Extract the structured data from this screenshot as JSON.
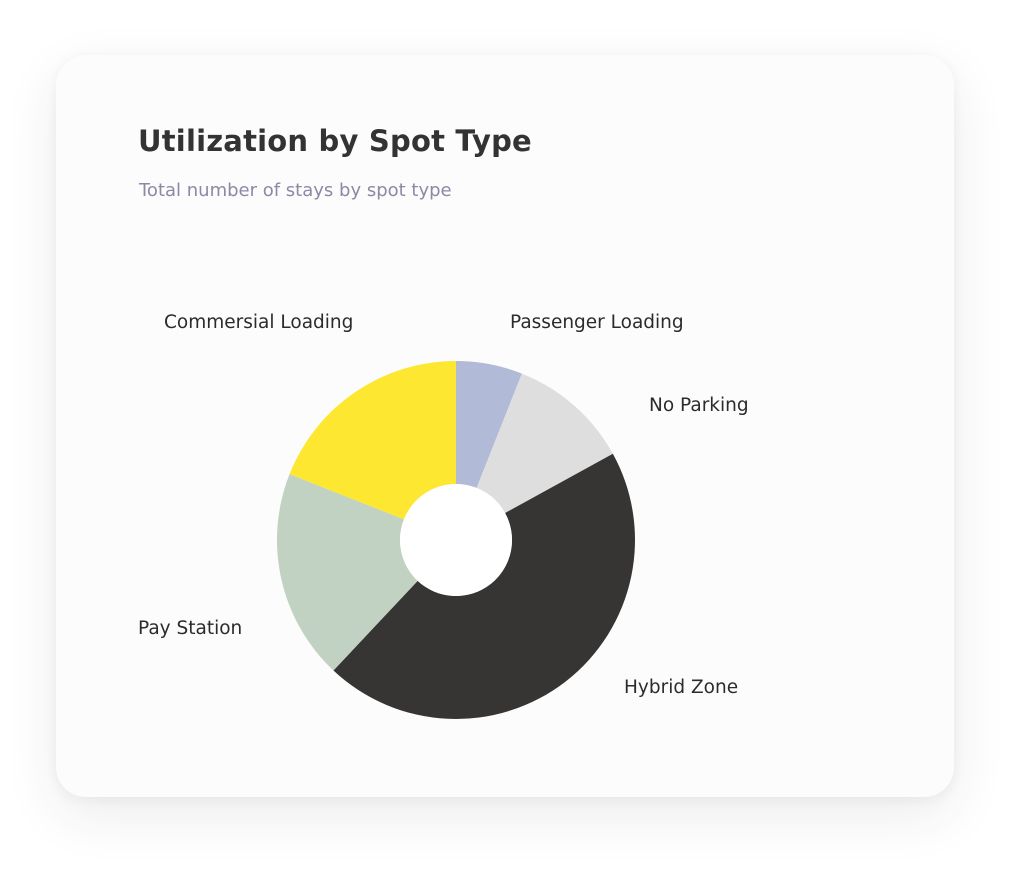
{
  "card": {
    "title": "Utilization by Spot Type",
    "subtitle": "Total number of stays by spot type"
  },
  "chart_data": {
    "type": "pie",
    "donut": true,
    "title": "Utilization by Spot Type",
    "subtitle": "Total number of stays by spot type",
    "legend": "none (direct slice labels)",
    "slices": [
      {
        "label": "Passenger Loading",
        "value": 6,
        "color": "#b1bad6"
      },
      {
        "label": "No Parking",
        "value": 11,
        "color": "#dedede"
      },
      {
        "label": "Hybrid Zone",
        "value": 45,
        "color": "#363534"
      },
      {
        "label": "Pay Station",
        "value": 19,
        "color": "#c1d1c2"
      },
      {
        "label": "Commersial Loading",
        "value": 19,
        "color": "#fde731"
      }
    ]
  }
}
